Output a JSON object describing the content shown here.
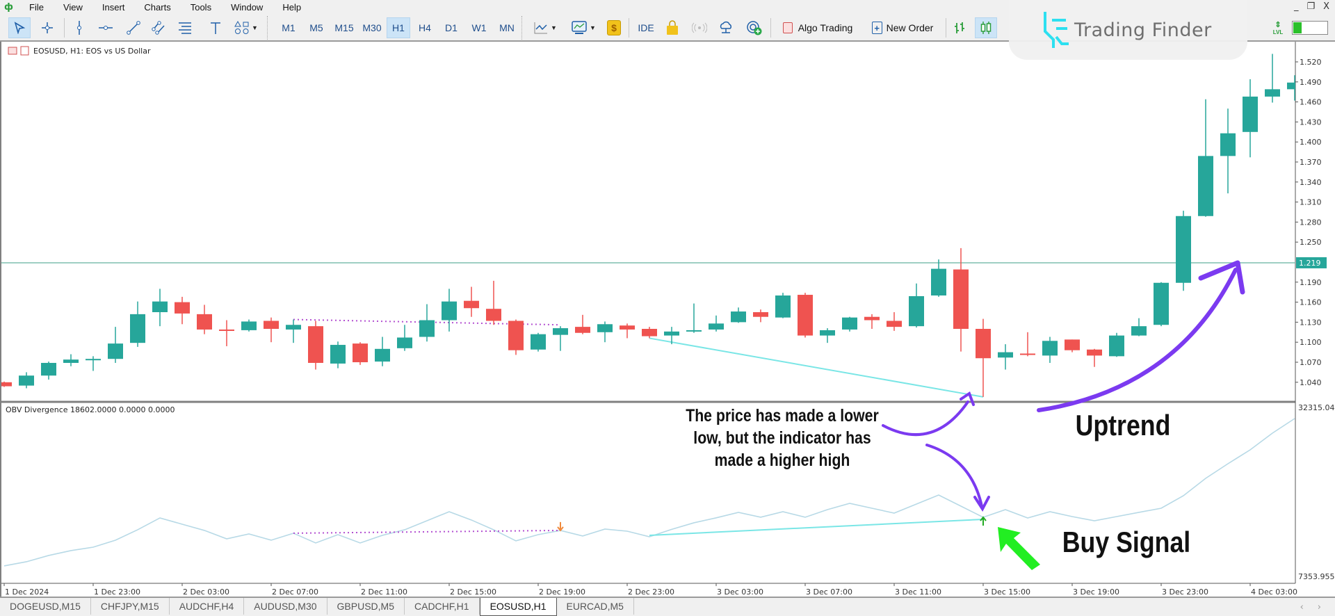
{
  "menu": [
    "File",
    "View",
    "Insert",
    "Charts",
    "Tools",
    "Window",
    "Help"
  ],
  "window_controls": {
    "minimize": "_",
    "restore": "❐",
    "close": "X"
  },
  "toolbar": {
    "timeframes": [
      "M1",
      "M5",
      "M15",
      "M30",
      "H1",
      "H4",
      "D1",
      "W1",
      "MN"
    ],
    "active_timeframe": "H1",
    "ide_label": "IDE",
    "algo_trading_label": "Algo Trading",
    "new_order_label": "New Order",
    "lvl_label": "LVL"
  },
  "watermark": "Trading Finder",
  "chart": {
    "title": "EOSUSD, H1:  EOS vs US Dollar",
    "indicator_label": "OBV Divergence 18602.0000 0.0000 0.0000",
    "current_price": "1.219"
  },
  "annotations": {
    "divergence_note": [
      "The price has made a lower",
      "low, but the indicator has",
      "made a higher high"
    ],
    "uptrend": "Uptrend",
    "buy_signal": "Buy Signal"
  },
  "tabs": [
    "DOGEUSD,M15",
    "CHFJPY,M15",
    "AUDCHF,H4",
    "AUDUSD,M30",
    "GBPUSD,M5",
    "CADCHF,H1",
    "EOSUSD,H1",
    "EURCAD,M5"
  ],
  "active_tab": "EOSUSD,H1",
  "colors": {
    "bull": "#26a69a",
    "bear": "#ef5350",
    "obv": "#b7d9e6",
    "trend": "#7ae6e6",
    "divergence_dotted": "#b34fd1",
    "annotation_arrow": "#7b3af0",
    "buy_arrow": "#22ee22",
    "price_line": "#7fbfaf"
  },
  "chart_data": [
    {
      "type": "candlestick",
      "symbol": "EOSUSD",
      "timeframe": "H1",
      "y_ticks": [
        "1.520",
        "1.490",
        "1.460",
        "1.430",
        "1.400",
        "1.370",
        "1.340",
        "1.310",
        "1.280",
        "1.250",
        "1.190",
        "1.160",
        "1.130",
        "1.100",
        "1.070",
        "1.040"
      ],
      "ylim": [
        1.018,
        1.535
      ],
      "horizontal_line": 1.219,
      "x_tick_labels": [
        "1 Dec 2024",
        "1 Dec 23:00",
        "2 Dec 03:00",
        "2 Dec 07:00",
        "2 Dec 11:00",
        "2 Dec 15:00",
        "2 Dec 19:00",
        "2 Dec 23:00",
        "3 Dec 03:00",
        "3 Dec 07:00",
        "3 Dec 11:00",
        "3 Dec 15:00",
        "3 Dec 19:00",
        "3 Dec 23:00",
        "4 Dec 03:00"
      ],
      "ohlc": [
        [
          1.04,
          1.041,
          1.033,
          1.034
        ],
        [
          1.035,
          1.055,
          1.031,
          1.05
        ],
        [
          1.05,
          1.071,
          1.044,
          1.069
        ],
        [
          1.069,
          1.082,
          1.064,
          1.074
        ],
        [
          1.073,
          1.079,
          1.057,
          1.075
        ],
        [
          1.075,
          1.123,
          1.069,
          1.098
        ],
        [
          1.099,
          1.161,
          1.093,
          1.142
        ],
        [
          1.145,
          1.18,
          1.124,
          1.161
        ],
        [
          1.16,
          1.168,
          1.127,
          1.143
        ],
        [
          1.142,
          1.156,
          1.112,
          1.119
        ],
        [
          1.119,
          1.133,
          1.094,
          1.117
        ],
        [
          1.118,
          1.134,
          1.116,
          1.131
        ],
        [
          1.132,
          1.137,
          1.1,
          1.12
        ],
        [
          1.119,
          1.134,
          1.099,
          1.126
        ],
        [
          1.124,
          1.132,
          1.059,
          1.069
        ],
        [
          1.068,
          1.101,
          1.061,
          1.096
        ],
        [
          1.098,
          1.1,
          1.066,
          1.07
        ],
        [
          1.071,
          1.108,
          1.064,
          1.09
        ],
        [
          1.091,
          1.126,
          1.087,
          1.107
        ],
        [
          1.108,
          1.157,
          1.101,
          1.133
        ],
        [
          1.133,
          1.18,
          1.116,
          1.161
        ],
        [
          1.162,
          1.183,
          1.138,
          1.151
        ],
        [
          1.15,
          1.192,
          1.126,
          1.132
        ],
        [
          1.132,
          1.134,
          1.081,
          1.088
        ],
        [
          1.089,
          1.114,
          1.086,
          1.112
        ],
        [
          1.111,
          1.124,
          1.087,
          1.121
        ],
        [
          1.123,
          1.141,
          1.112,
          1.114
        ],
        [
          1.115,
          1.131,
          1.1,
          1.127
        ],
        [
          1.125,
          1.128,
          1.106,
          1.119
        ],
        [
          1.12,
          1.123,
          1.106,
          1.109
        ],
        [
          1.11,
          1.123,
          1.097,
          1.116
        ],
        [
          1.116,
          1.158,
          1.114,
          1.118
        ],
        [
          1.119,
          1.14,
          1.116,
          1.128
        ],
        [
          1.13,
          1.152,
          1.129,
          1.146
        ],
        [
          1.145,
          1.149,
          1.13,
          1.138
        ],
        [
          1.137,
          1.174,
          1.136,
          1.17
        ],
        [
          1.171,
          1.174,
          1.107,
          1.11
        ],
        [
          1.11,
          1.121,
          1.099,
          1.118
        ],
        [
          1.119,
          1.138,
          1.116,
          1.137
        ],
        [
          1.138,
          1.142,
          1.12,
          1.133
        ],
        [
          1.132,
          1.145,
          1.117,
          1.123
        ],
        [
          1.124,
          1.188,
          1.122,
          1.169
        ],
        [
          1.17,
          1.224,
          1.168,
          1.21
        ],
        [
          1.209,
          1.241,
          1.086,
          1.12
        ],
        [
          1.12,
          1.135,
          1.018,
          1.076
        ],
        [
          1.077,
          1.097,
          1.059,
          1.085
        ],
        [
          1.083,
          1.115,
          1.079,
          1.081
        ],
        [
          1.08,
          1.108,
          1.069,
          1.102
        ],
        [
          1.104,
          1.104,
          1.085,
          1.088
        ],
        [
          1.089,
          1.09,
          1.063,
          1.08
        ],
        [
          1.079,
          1.114,
          1.078,
          1.11
        ],
        [
          1.11,
          1.136,
          1.109,
          1.124
        ],
        [
          1.126,
          1.19,
          1.124,
          1.189
        ],
        [
          1.189,
          1.297,
          1.177,
          1.289
        ],
        [
          1.289,
          1.464,
          1.288,
          1.379
        ],
        [
          1.379,
          1.45,
          1.323,
          1.413
        ],
        [
          1.415,
          1.494,
          1.377,
          1.468
        ],
        [
          1.468,
          1.532,
          1.459,
          1.479
        ],
        [
          1.479,
          1.5,
          1.462,
          1.489
        ]
      ],
      "trendline": {
        "from_candle": 30,
        "from_price": 1.106,
        "to_candle": 45,
        "to_price": 1.018
      },
      "dotted_line": {
        "from_candle": 14,
        "from_price": 1.134,
        "to_candle": 26,
        "to_price": 1.126
      }
    },
    {
      "type": "line",
      "name": "OBV Divergence",
      "y_ticks": [
        "32315.04",
        "7353.955"
      ],
      "ylim": [
        7353.955,
        32315.04
      ],
      "values": [
        8900,
        9515,
        10440,
        11160,
        11670,
        12700,
        14240,
        15985,
        15060,
        14140,
        12900,
        13620,
        12700,
        13730,
        12290,
        13520,
        12290,
        13420,
        14240,
        15570,
        16910,
        15680,
        14240,
        12600,
        13520,
        14140,
        13320,
        14340,
        14030,
        13210,
        14300,
        15270,
        16000,
        16810,
        16090,
        16910,
        16090,
        17220,
        18140,
        17420,
        16700,
        18040,
        19370,
        17730,
        16090,
        17220,
        15985,
        16910,
        16190,
        15570,
        16190,
        16810,
        17420,
        19270,
        21840,
        23995,
        26050,
        28515,
        30670
      ],
      "trendline": {
        "from_candle": 30,
        "from_value": 13420,
        "to_candle": 45,
        "to_value": 15780
      },
      "dotted_line": {
        "from_candle": 14,
        "from_value": 13730,
        "to_candle": 26,
        "to_value": 14140
      },
      "signals": [
        {
          "candle": 26,
          "type": "sell-arrow",
          "color": "#f08a3c"
        },
        {
          "candle": 45,
          "type": "buy-arrow",
          "color": "#22aa22"
        }
      ]
    }
  ]
}
